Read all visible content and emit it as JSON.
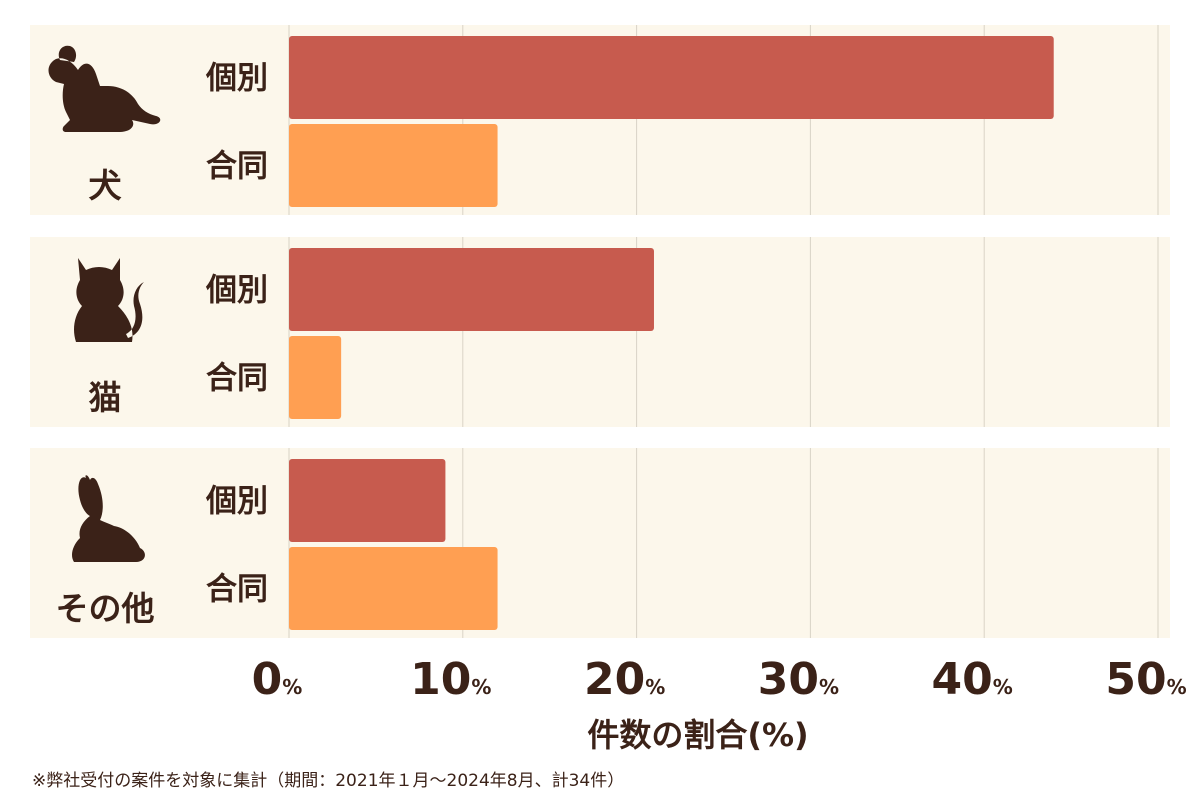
{
  "chart_data": {
    "type": "bar",
    "orientation": "horizontal",
    "groups": [
      {
        "label": "犬",
        "icon": "dog-icon"
      },
      {
        "label": "猫",
        "icon": "cat-icon"
      },
      {
        "label": "その他",
        "icon": "rabbit-icon"
      }
    ],
    "series": [
      {
        "name": "個別",
        "color": "#c75b4e",
        "values": [
          44,
          21,
          9
        ]
      },
      {
        "name": "合同",
        "color": "#ff9f52",
        "values": [
          12,
          3,
          12
        ]
      }
    ],
    "xlabel": "件数の割合(%)",
    "xticks": [
      0,
      10,
      20,
      30,
      40,
      50
    ],
    "tick_suffix": "%",
    "xlim": [
      0,
      50
    ],
    "grid": true,
    "panel_color": "#fcf7eb",
    "grid_color": "#d9d3c6",
    "text_color": "#3b2218"
  },
  "footnote": "※弊社受付の案件を対象に集計（期間：2021年１月〜2024年8月、計34件）"
}
